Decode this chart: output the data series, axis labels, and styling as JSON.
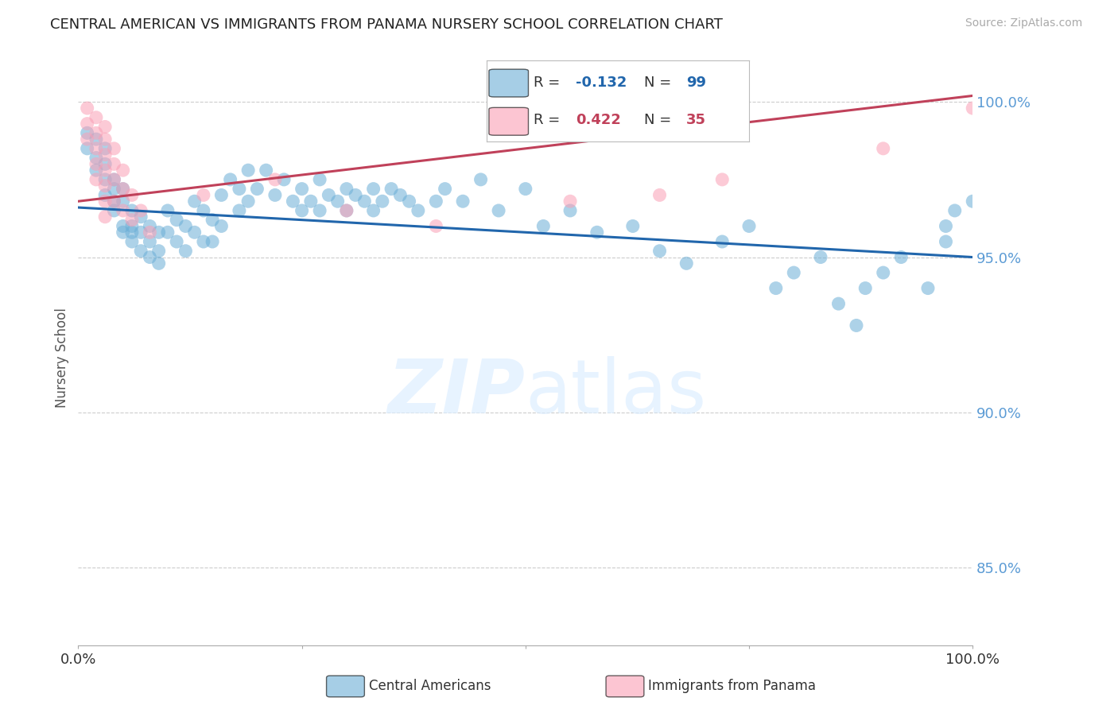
{
  "title": "CENTRAL AMERICAN VS IMMIGRANTS FROM PANAMA NURSERY SCHOOL CORRELATION CHART",
  "source": "Source: ZipAtlas.com",
  "ylabel": "Nursery School",
  "legend_label_1": "Central Americans",
  "legend_label_2": "Immigrants from Panama",
  "r1": -0.132,
  "n1": 99,
  "r2": 0.422,
  "n2": 35,
  "color_blue": "#6baed6",
  "color_pink": "#fa9fb5",
  "trendline_blue": "#2166ac",
  "trendline_pink": "#c0415a",
  "xlim": [
    0.0,
    1.0
  ],
  "ylim": [
    0.825,
    1.01
  ],
  "yticks": [
    0.85,
    0.9,
    0.95,
    1.0
  ],
  "ytick_labels": [
    "85.0%",
    "90.0%",
    "95.0%",
    "100.0%"
  ],
  "background_color": "#ffffff",
  "grid_color": "#cccccc",
  "blue_x": [
    0.01,
    0.01,
    0.02,
    0.02,
    0.02,
    0.03,
    0.03,
    0.03,
    0.03,
    0.04,
    0.04,
    0.04,
    0.04,
    0.05,
    0.05,
    0.05,
    0.05,
    0.06,
    0.06,
    0.06,
    0.06,
    0.07,
    0.07,
    0.07,
    0.08,
    0.08,
    0.08,
    0.09,
    0.09,
    0.09,
    0.1,
    0.1,
    0.11,
    0.11,
    0.12,
    0.12,
    0.13,
    0.13,
    0.14,
    0.14,
    0.15,
    0.15,
    0.16,
    0.16,
    0.17,
    0.18,
    0.18,
    0.19,
    0.19,
    0.2,
    0.21,
    0.22,
    0.23,
    0.24,
    0.25,
    0.25,
    0.26,
    0.27,
    0.27,
    0.28,
    0.29,
    0.3,
    0.3,
    0.31,
    0.32,
    0.33,
    0.33,
    0.34,
    0.35,
    0.36,
    0.37,
    0.38,
    0.4,
    0.41,
    0.43,
    0.45,
    0.47,
    0.5,
    0.52,
    0.55,
    0.58,
    0.62,
    0.65,
    0.68,
    0.72,
    0.75,
    0.78,
    0.8,
    0.83,
    0.85,
    0.87,
    0.88,
    0.9,
    0.92,
    0.95,
    0.97,
    0.97,
    0.98,
    1.0
  ],
  "blue_y": [
    0.99,
    0.985,
    0.988,
    0.982,
    0.978,
    0.975,
    0.98,
    0.985,
    0.97,
    0.975,
    0.972,
    0.968,
    0.965,
    0.968,
    0.972,
    0.96,
    0.958,
    0.965,
    0.96,
    0.958,
    0.955,
    0.963,
    0.958,
    0.952,
    0.96,
    0.955,
    0.95,
    0.958,
    0.952,
    0.948,
    0.965,
    0.958,
    0.962,
    0.955,
    0.96,
    0.952,
    0.968,
    0.958,
    0.965,
    0.955,
    0.962,
    0.955,
    0.97,
    0.96,
    0.975,
    0.972,
    0.965,
    0.978,
    0.968,
    0.972,
    0.978,
    0.97,
    0.975,
    0.968,
    0.965,
    0.972,
    0.968,
    0.975,
    0.965,
    0.97,
    0.968,
    0.972,
    0.965,
    0.97,
    0.968,
    0.972,
    0.965,
    0.968,
    0.972,
    0.97,
    0.968,
    0.965,
    0.968,
    0.972,
    0.968,
    0.975,
    0.965,
    0.972,
    0.96,
    0.965,
    0.958,
    0.96,
    0.952,
    0.948,
    0.955,
    0.96,
    0.94,
    0.945,
    0.95,
    0.935,
    0.928,
    0.94,
    0.945,
    0.95,
    0.94,
    0.955,
    0.96,
    0.965,
    0.968
  ],
  "pink_x": [
    0.01,
    0.01,
    0.01,
    0.02,
    0.02,
    0.02,
    0.02,
    0.02,
    0.03,
    0.03,
    0.03,
    0.03,
    0.03,
    0.03,
    0.03,
    0.04,
    0.04,
    0.04,
    0.04,
    0.05,
    0.05,
    0.05,
    0.06,
    0.06,
    0.07,
    0.08,
    0.14,
    0.22,
    0.3,
    0.4,
    0.55,
    0.65,
    0.72,
    0.9,
    1.0
  ],
  "pink_y": [
    0.998,
    0.993,
    0.988,
    0.995,
    0.99,
    0.985,
    0.98,
    0.975,
    0.992,
    0.988,
    0.983,
    0.978,
    0.973,
    0.968,
    0.963,
    0.985,
    0.98,
    0.975,
    0.968,
    0.978,
    0.972,
    0.965,
    0.97,
    0.962,
    0.965,
    0.958,
    0.97,
    0.975,
    0.965,
    0.96,
    0.968,
    0.97,
    0.975,
    0.985,
    0.998
  ],
  "blue_trend_x0": 0.0,
  "blue_trend_y0": 0.966,
  "blue_trend_x1": 1.0,
  "blue_trend_y1": 0.95,
  "pink_trend_x0": 0.0,
  "pink_trend_y0": 0.968,
  "pink_trend_x1": 1.0,
  "pink_trend_y1": 1.002
}
